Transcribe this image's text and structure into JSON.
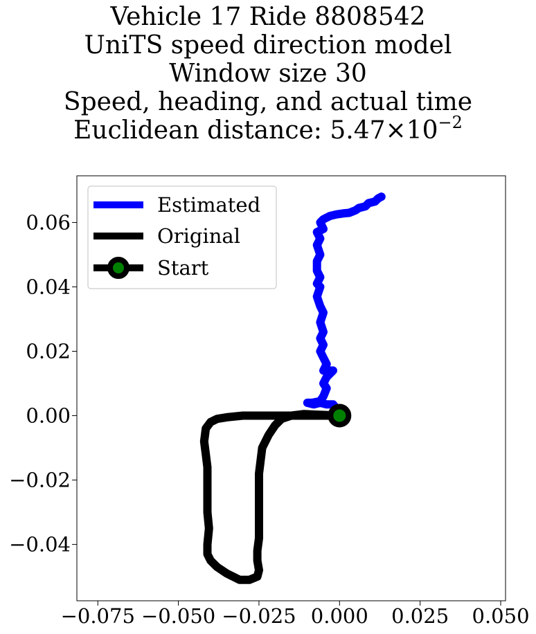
{
  "chart_data": {
    "type": "line",
    "title_lines": [
      "Vehicle 17 Ride 8808542",
      "UniTS speed direction model",
      "Window size 30",
      "Speed, heading, and actual time"
    ],
    "title_distance_prefix": "Euclidean distance: ",
    "title_distance_mantissa": "5.47",
    "title_distance_times": "×",
    "title_distance_base": "10",
    "title_distance_exponent": "−2",
    "xlabel": "",
    "ylabel": "",
    "xlim": [
      -0.0815,
      0.0515
    ],
    "ylim": [
      -0.0575,
      0.0745
    ],
    "xticks": [
      -0.075,
      -0.05,
      -0.025,
      0.0,
      0.025,
      0.05
    ],
    "xtick_labels": [
      "−0.075",
      "−0.050",
      "−0.025",
      "0.000",
      "0.025",
      "0.050"
    ],
    "yticks": [
      -0.04,
      -0.02,
      0.0,
      0.02,
      0.04,
      0.06
    ],
    "ytick_labels": [
      "−0.04",
      "−0.02",
      "0.00",
      "0.02",
      "0.04",
      "0.06"
    ],
    "grid": false,
    "legend_placement": "top-left",
    "series": [
      {
        "name": "Estimated",
        "color": "#0000ff",
        "x": [
          0.0,
          -0.002,
          -0.004,
          -0.006,
          -0.008,
          -0.01,
          -0.0085,
          -0.006,
          -0.005,
          -0.004,
          -0.005,
          -0.004,
          -0.003,
          -0.002,
          -0.005,
          -0.004,
          -0.005,
          -0.006,
          -0.005,
          -0.006,
          -0.005,
          -0.006,
          -0.005,
          -0.006,
          -0.007,
          -0.006,
          -0.007,
          -0.006,
          -0.007,
          -0.007,
          -0.006,
          -0.007,
          -0.006,
          -0.007,
          -0.005,
          -0.006,
          -0.005,
          -0.003,
          -0.001,
          0.001,
          0.003,
          0.005,
          0.006,
          0.008,
          0.009,
          0.011,
          0.012,
          0.013
        ],
        "y": [
          0.001,
          0.0035,
          0.0035,
          0.004,
          0.0035,
          0.004,
          0.004,
          0.0045,
          0.006,
          0.0085,
          0.01,
          0.012,
          0.013,
          0.014,
          0.014,
          0.016,
          0.018,
          0.02,
          0.022,
          0.024,
          0.026,
          0.029,
          0.032,
          0.034,
          0.037,
          0.04,
          0.041,
          0.043,
          0.045,
          0.048,
          0.05,
          0.053,
          0.055,
          0.057,
          0.058,
          0.06,
          0.061,
          0.062,
          0.0625,
          0.0628,
          0.063,
          0.0638,
          0.0645,
          0.065,
          0.066,
          0.0665,
          0.0675,
          0.068
        ]
      },
      {
        "name": "Original",
        "color": "#000000",
        "x": [
          0.0,
          -0.005,
          -0.01,
          -0.015,
          -0.02,
          -0.023,
          -0.025,
          -0.03,
          -0.035,
          -0.038,
          -0.04,
          -0.0415,
          -0.042,
          -0.0415,
          -0.041,
          -0.041,
          -0.041,
          -0.041,
          -0.0405,
          -0.041,
          -0.041,
          -0.04,
          -0.038,
          -0.035,
          -0.031,
          -0.028,
          -0.0255,
          -0.025,
          -0.0255,
          -0.0255,
          -0.025,
          -0.025,
          -0.025,
          -0.025,
          -0.025,
          -0.025,
          -0.0245,
          -0.024,
          -0.022,
          -0.02,
          -0.018,
          -0.015,
          -0.011,
          -0.007,
          -0.004,
          -0.002,
          0.0
        ],
        "y": [
          0.0,
          0.0,
          0.0,
          0.0,
          0.0,
          0.0,
          0.0,
          0.0,
          -0.0005,
          -0.001,
          -0.002,
          -0.004,
          -0.008,
          -0.012,
          -0.016,
          -0.02,
          -0.025,
          -0.03,
          -0.035,
          -0.04,
          -0.043,
          -0.045,
          -0.047,
          -0.049,
          -0.051,
          -0.051,
          -0.05,
          -0.048,
          -0.045,
          -0.042,
          -0.038,
          -0.034,
          -0.03,
          -0.026,
          -0.022,
          -0.018,
          -0.014,
          -0.01,
          -0.006,
          -0.003,
          -0.001,
          0.0,
          0.0005,
          0.0003,
          0.0002,
          0.0001,
          0.0
        ]
      }
    ],
    "start_marker": {
      "name": "Start",
      "x": 0.0,
      "y": 0.0,
      "edge_color": "#000000",
      "face_color": "#008000"
    }
  }
}
